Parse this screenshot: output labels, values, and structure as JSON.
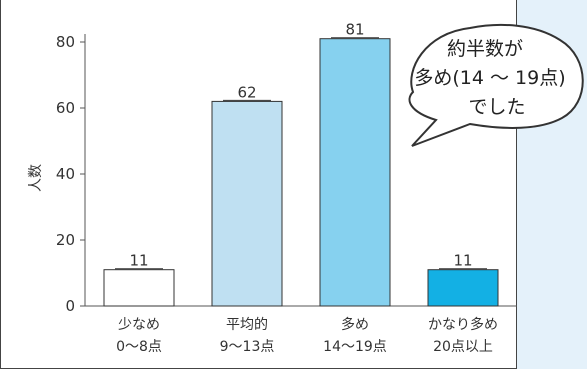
{
  "chart_data": {
    "type": "bar",
    "ylabel": "人数",
    "ylim": [
      0,
      80
    ],
    "yticks": [
      0,
      20,
      40,
      60,
      80
    ],
    "categories": [
      {
        "line1": "少なめ",
        "line2": "0～8点"
      },
      {
        "line1": "平均的",
        "line2": "9～13点"
      },
      {
        "line1": "多め",
        "line2": "14～19点"
      },
      {
        "line1": "かなり多め",
        "line2": "20点以上"
      }
    ],
    "values": [
      11,
      62,
      81,
      11
    ],
    "bar_colors": [
      "#ffffff",
      "#bfe0f2",
      "#86d1ef",
      "#13b0e4"
    ],
    "grid": false
  },
  "callout": {
    "lines": [
      "約半数が",
      "多め(14 ～ 19点)",
      "でした"
    ]
  }
}
